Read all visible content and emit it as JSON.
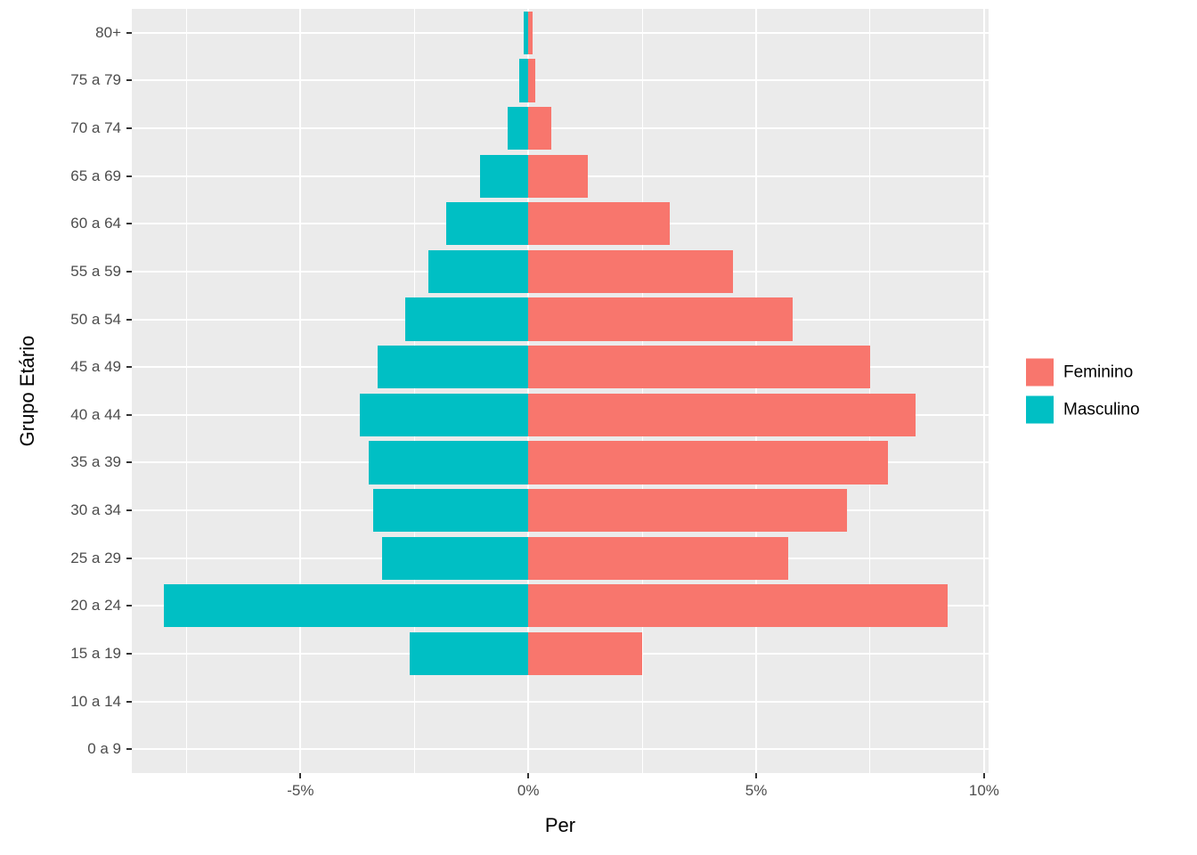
{
  "chart_data": {
    "type": "bar",
    "orientation": "horizontal",
    "title": "",
    "xlabel": "Per",
    "ylabel": "Grupo Etário",
    "categories": [
      "0 a 9",
      "10 a 14",
      "15 a 19",
      "20 a 24",
      "25 a 29",
      "30 a 34",
      "35 a 39",
      "40 a 44",
      "45 a 49",
      "50 a 54",
      "55 a 59",
      "60 a 64",
      "65 a 69",
      "70 a 74",
      "75 a 79",
      "80+"
    ],
    "series": [
      {
        "name": "Feminino",
        "color": "#F8766D",
        "values": [
          0,
          0,
          2.5,
          9.2,
          5.7,
          7.0,
          7.9,
          8.5,
          7.5,
          5.8,
          4.5,
          3.1,
          1.3,
          0.5,
          0.15,
          0.1
        ]
      },
      {
        "name": "Masculino",
        "color": "#00BFC4",
        "values": [
          0,
          0,
          -2.6,
          -8.0,
          -3.2,
          -3.4,
          -3.5,
          -3.7,
          -3.3,
          -2.7,
          -2.2,
          -1.8,
          -1.05,
          -0.45,
          -0.2,
          -0.1
        ]
      }
    ],
    "xlim": [
      -8.7,
      10.1
    ],
    "x_ticks": [
      {
        "value": -5,
        "label": "-5%"
      },
      {
        "value": 0,
        "label": "0%"
      },
      {
        "value": 5,
        "label": "5%"
      },
      {
        "value": 10,
        "label": "10%"
      }
    ],
    "x_minor_ticks": [
      -7.5,
      -2.5,
      2.5,
      7.5
    ],
    "grid": true,
    "panel_background": "#EBEBEB",
    "grid_color": "#FFFFFF",
    "legend": {
      "position": "right",
      "items": [
        {
          "label": "Feminino",
          "color": "#F8766D"
        },
        {
          "label": "Masculino",
          "color": "#00BFC4"
        }
      ]
    }
  }
}
